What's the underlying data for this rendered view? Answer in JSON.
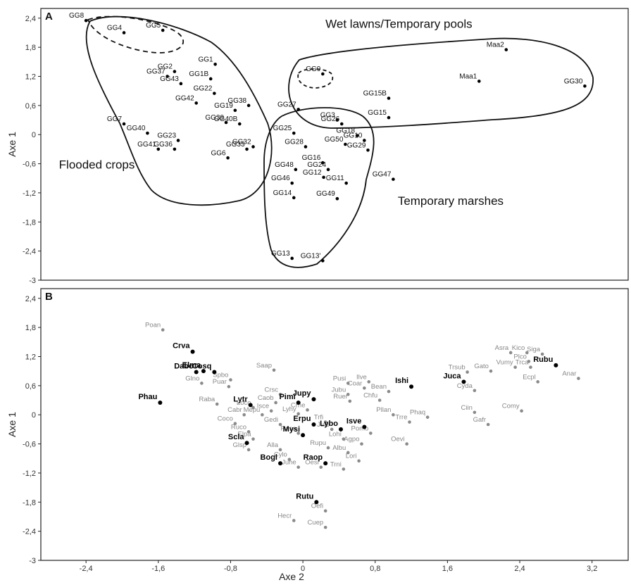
{
  "chart_data": [
    {
      "panel": "A",
      "type": "scatter",
      "ylabel": "Axe 1",
      "xlim": [
        -2.9,
        3.6
      ],
      "ylim": [
        -3,
        2.6
      ],
      "yticks": [
        "2,4",
        "1,8",
        "1,2",
        "0,6",
        "0",
        "-0,6",
        "-1,2",
        "-1,8",
        "-2,4",
        "-3"
      ],
      "points": [
        {
          "label": "GG8",
          "x": -2.4,
          "y": 2.35
        },
        {
          "label": "GG4",
          "x": -1.98,
          "y": 2.1
        },
        {
          "label": "GG5",
          "x": -1.55,
          "y": 2.15
        },
        {
          "label": "GG1",
          "x": -0.97,
          "y": 1.45
        },
        {
          "label": "GG2",
          "x": -1.42,
          "y": 1.3
        },
        {
          "label": "GG1B",
          "x": -1.02,
          "y": 1.15
        },
        {
          "label": "GG37",
          "x": -1.5,
          "y": 1.2
        },
        {
          "label": "GG43",
          "x": -1.35,
          "y": 1.05
        },
        {
          "label": "GG22",
          "x": -0.98,
          "y": 0.85
        },
        {
          "label": "GG42",
          "x": -1.18,
          "y": 0.65
        },
        {
          "label": "GG38",
          "x": -0.6,
          "y": 0.6
        },
        {
          "label": "GG19",
          "x": -0.75,
          "y": 0.5
        },
        {
          "label": "GG39",
          "x": -0.85,
          "y": 0.25
        },
        {
          "label": "GG40B",
          "x": -0.7,
          "y": 0.22
        },
        {
          "label": "GG7",
          "x": -1.98,
          "y": 0.22
        },
        {
          "label": "GG40",
          "x": -1.72,
          "y": 0.03
        },
        {
          "label": "GG23",
          "x": -1.38,
          "y": -0.12
        },
        {
          "label": "GG32",
          "x": -0.55,
          "y": -0.25
        },
        {
          "label": "GG41",
          "x": -1.6,
          "y": -0.3
        },
        {
          "label": "GG36",
          "x": -1.42,
          "y": -0.3
        },
        {
          "label": "GG33",
          "x": -0.62,
          "y": -0.3
        },
        {
          "label": "GG6",
          "x": -0.83,
          "y": -0.48
        },
        {
          "label": "GG9",
          "x": 0.22,
          "y": 1.25
        },
        {
          "label": "Maa2",
          "x": 2.25,
          "y": 1.75
        },
        {
          "label": "GG15B",
          "x": 0.95,
          "y": 0.75
        },
        {
          "label": "Maa1",
          "x": 1.95,
          "y": 1.1
        },
        {
          "label": "GG30",
          "x": 3.12,
          "y": 1.0
        },
        {
          "label": "GG27",
          "x": -0.05,
          "y": 0.52
        },
        {
          "label": "GG15",
          "x": 0.95,
          "y": 0.35
        },
        {
          "label": "GG3",
          "x": 0.38,
          "y": 0.3
        },
        {
          "label": "GG26",
          "x": 0.43,
          "y": 0.22
        },
        {
          "label": "GG25",
          "x": -0.1,
          "y": 0.03
        },
        {
          "label": "GG18",
          "x": 0.6,
          "y": -0.02
        },
        {
          "label": "GG10",
          "x": 0.68,
          "y": -0.12
        },
        {
          "label": "GG28",
          "x": 0.03,
          "y": -0.25
        },
        {
          "label": "GG50",
          "x": 0.47,
          "y": -0.2
        },
        {
          "label": "GG29",
          "x": 0.72,
          "y": -0.32
        },
        {
          "label": "GG16",
          "x": 0.22,
          "y": -0.58
        },
        {
          "label": "GG24",
          "x": 0.28,
          "y": -0.72
        },
        {
          "label": "GG48",
          "x": -0.08,
          "y": -0.72
        },
        {
          "label": "GG12",
          "x": 0.23,
          "y": -0.88
        },
        {
          "label": "GG47",
          "x": 1.0,
          "y": -0.92
        },
        {
          "label": "GG46",
          "x": -0.12,
          "y": -1.0
        },
        {
          "label": "GG11",
          "x": 0.48,
          "y": -1.0
        },
        {
          "label": "GG14",
          "x": -0.1,
          "y": -1.3
        },
        {
          "label": "GG49",
          "x": 0.38,
          "y": -1.32
        },
        {
          "label": "GG13",
          "x": -0.12,
          "y": -2.55
        },
        {
          "label": "GG13'",
          "x": 0.22,
          "y": -2.6
        }
      ],
      "groups": [
        {
          "label": "Wet lawns/Temporary pools",
          "x": 0.25,
          "y": 2.2
        },
        {
          "label": "Flooded crops",
          "x": -2.7,
          "y": -0.7
        },
        {
          "label": "Temporary marshes",
          "x": 1.05,
          "y": -1.45
        }
      ]
    },
    {
      "panel": "B",
      "type": "scatter",
      "ylabel": "Axe 1",
      "xlabel": "Axe 2",
      "xlim": [
        -2.9,
        3.6
      ],
      "ylim": [
        -3,
        2.6
      ],
      "xticks": [
        "-2,4",
        "-1,6",
        "-0,8",
        "0",
        "0,8",
        "1,6",
        "2,4",
        "3,2"
      ],
      "yticks": [
        "2,4",
        "1,8",
        "1,2",
        "0,6",
        "0",
        "-0,6",
        "-1,2",
        "-1,8",
        "-2,4",
        "-3"
      ],
      "bold_points": [
        {
          "label": "Crva",
          "x": -1.22,
          "y": 1.3
        },
        {
          "label": "Elma",
          "x": -1.1,
          "y": 0.9
        },
        {
          "label": "Dabo",
          "x": -1.18,
          "y": 0.88
        },
        {
          "label": "Cosq",
          "x": -0.98,
          "y": 0.88
        },
        {
          "label": "Phau",
          "x": -1.58,
          "y": 0.25
        },
        {
          "label": "Pimi",
          "x": -0.05,
          "y": 0.25
        },
        {
          "label": "Jupy",
          "x": 0.12,
          "y": 0.32
        },
        {
          "label": "Lytr",
          "x": -0.58,
          "y": 0.2
        },
        {
          "label": "Erpu",
          "x": 0.12,
          "y": -0.2
        },
        {
          "label": "Lybo",
          "x": 0.42,
          "y": -0.3
        },
        {
          "label": "Isve",
          "x": 0.68,
          "y": -0.25
        },
        {
          "label": "Scla",
          "x": -0.62,
          "y": -0.58
        },
        {
          "label": "Mysi",
          "x": 0,
          "y": -0.42
        },
        {
          "label": "Bogl",
          "x": -0.25,
          "y": -1.0
        },
        {
          "label": "Raop",
          "x": 0.25,
          "y": -1.0
        },
        {
          "label": "Ishi",
          "x": 1.2,
          "y": 0.58
        },
        {
          "label": "Juca",
          "x": 1.78,
          "y": 0.68
        },
        {
          "label": "Rubu",
          "x": 2.8,
          "y": 1.02
        },
        {
          "label": "Rutu",
          "x": 0.15,
          "y": -1.8
        }
      ],
      "grey_points": [
        {
          "label": "Poan",
          "x": -1.55,
          "y": 1.75
        },
        {
          "label": "Saap",
          "x": -0.32,
          "y": 0.92
        },
        {
          "label": "Spbo",
          "x": -0.8,
          "y": 0.72
        },
        {
          "label": "Glno",
          "x": -1.12,
          "y": 0.65
        },
        {
          "label": "Puar",
          "x": -0.82,
          "y": 0.58
        },
        {
          "label": "Raba",
          "x": -0.95,
          "y": 0.22
        },
        {
          "label": "Crsc",
          "x": -0.25,
          "y": 0.42
        },
        {
          "label": "Caob",
          "x": -0.3,
          "y": 0.25
        },
        {
          "label": "Loco",
          "x": -0.55,
          "y": 0.15
        },
        {
          "label": "Isce",
          "x": -0.35,
          "y": 0.08
        },
        {
          "label": "Cabr",
          "x": -0.65,
          "y": 0.0
        },
        {
          "label": "Mepu",
          "x": -0.45,
          "y": 0.0
        },
        {
          "label": "Coco",
          "x": -0.75,
          "y": -0.18
        },
        {
          "label": "Gedi",
          "x": -0.25,
          "y": -0.2
        },
        {
          "label": "Ruco",
          "x": -0.6,
          "y": -0.35
        },
        {
          "label": "Elpa",
          "x": -0.55,
          "y": -0.5
        },
        {
          "label": "Glsp",
          "x": -0.6,
          "y": -0.72
        },
        {
          "label": "Alla",
          "x": -0.25,
          "y": -0.72
        },
        {
          "label": "Cylo",
          "x": -0.15,
          "y": -0.92
        },
        {
          "label": "Juhe",
          "x": -0.05,
          "y": -1.08
        },
        {
          "label": "Oesi",
          "x": 0.2,
          "y": -1.08
        },
        {
          "label": "Lyhy",
          "x": -0.05,
          "y": 0.02
        },
        {
          "label": "Crhe",
          "x": 0.05,
          "y": 0.1
        },
        {
          "label": "Rasa",
          "x": -0.05,
          "y": -0.38
        },
        {
          "label": "Trfi",
          "x": 0.25,
          "y": -0.15
        },
        {
          "label": "Jute",
          "x": 0.32,
          "y": -0.3
        },
        {
          "label": "Rupu",
          "x": 0.28,
          "y": -0.68
        },
        {
          "label": "Lohi",
          "x": 0.45,
          "y": -0.5
        },
        {
          "label": "Albu",
          "x": 0.5,
          "y": -0.78
        },
        {
          "label": "Lori",
          "x": 0.62,
          "y": -0.95
        },
        {
          "label": "Trni",
          "x": 0.45,
          "y": -1.12
        },
        {
          "label": "Agpo",
          "x": 0.65,
          "y": -0.6
        },
        {
          "label": "Pomo",
          "x": 0.75,
          "y": -0.38
        },
        {
          "label": "Oevi",
          "x": 1.15,
          "y": -0.6
        },
        {
          "label": "Pusi",
          "x": 0.5,
          "y": 0.65
        },
        {
          "label": "Ilve",
          "x": 0.73,
          "y": 0.68
        },
        {
          "label": "Coar",
          "x": 0.68,
          "y": 0.55
        },
        {
          "label": "Jubu",
          "x": 0.5,
          "y": 0.42
        },
        {
          "label": "Ruer",
          "x": 0.52,
          "y": 0.28
        },
        {
          "label": "Bean",
          "x": 0.95,
          "y": 0.48
        },
        {
          "label": "Chfu",
          "x": 0.85,
          "y": 0.3
        },
        {
          "label": "Pllan",
          "x": 1.0,
          "y": 0.0
        },
        {
          "label": "Phaq",
          "x": 1.38,
          "y": -0.05
        },
        {
          "label": "Trre",
          "x": 1.18,
          "y": -0.15
        },
        {
          "label": "Trsub",
          "x": 1.82,
          "y": 0.88
        },
        {
          "label": "Gato",
          "x": 2.08,
          "y": 0.9
        },
        {
          "label": "Cyda",
          "x": 1.9,
          "y": 0.5
        },
        {
          "label": "Ciin",
          "x": 1.9,
          "y": 0.05
        },
        {
          "label": "Gafr",
          "x": 2.05,
          "y": -0.2
        },
        {
          "label": "Comy",
          "x": 2.42,
          "y": 0.08
        },
        {
          "label": "Asra",
          "x": 2.3,
          "y": 1.28
        },
        {
          "label": "Kico",
          "x": 2.48,
          "y": 1.28
        },
        {
          "label": "Siga",
          "x": 2.65,
          "y": 1.25
        },
        {
          "label": "Plco",
          "x": 2.5,
          "y": 1.1
        },
        {
          "label": "Vumy",
          "x": 2.35,
          "y": 0.98
        },
        {
          "label": "Trca",
          "x": 2.52,
          "y": 0.98
        },
        {
          "label": "Ecpl",
          "x": 2.6,
          "y": 0.68
        },
        {
          "label": "Anar",
          "x": 3.05,
          "y": 0.75
        },
        {
          "label": "Oefi",
          "x": 0.25,
          "y": -1.98
        },
        {
          "label": "Hecr",
          "x": -0.1,
          "y": -2.18
        },
        {
          "label": "Cuep",
          "x": 0.25,
          "y": -2.32
        }
      ]
    }
  ]
}
